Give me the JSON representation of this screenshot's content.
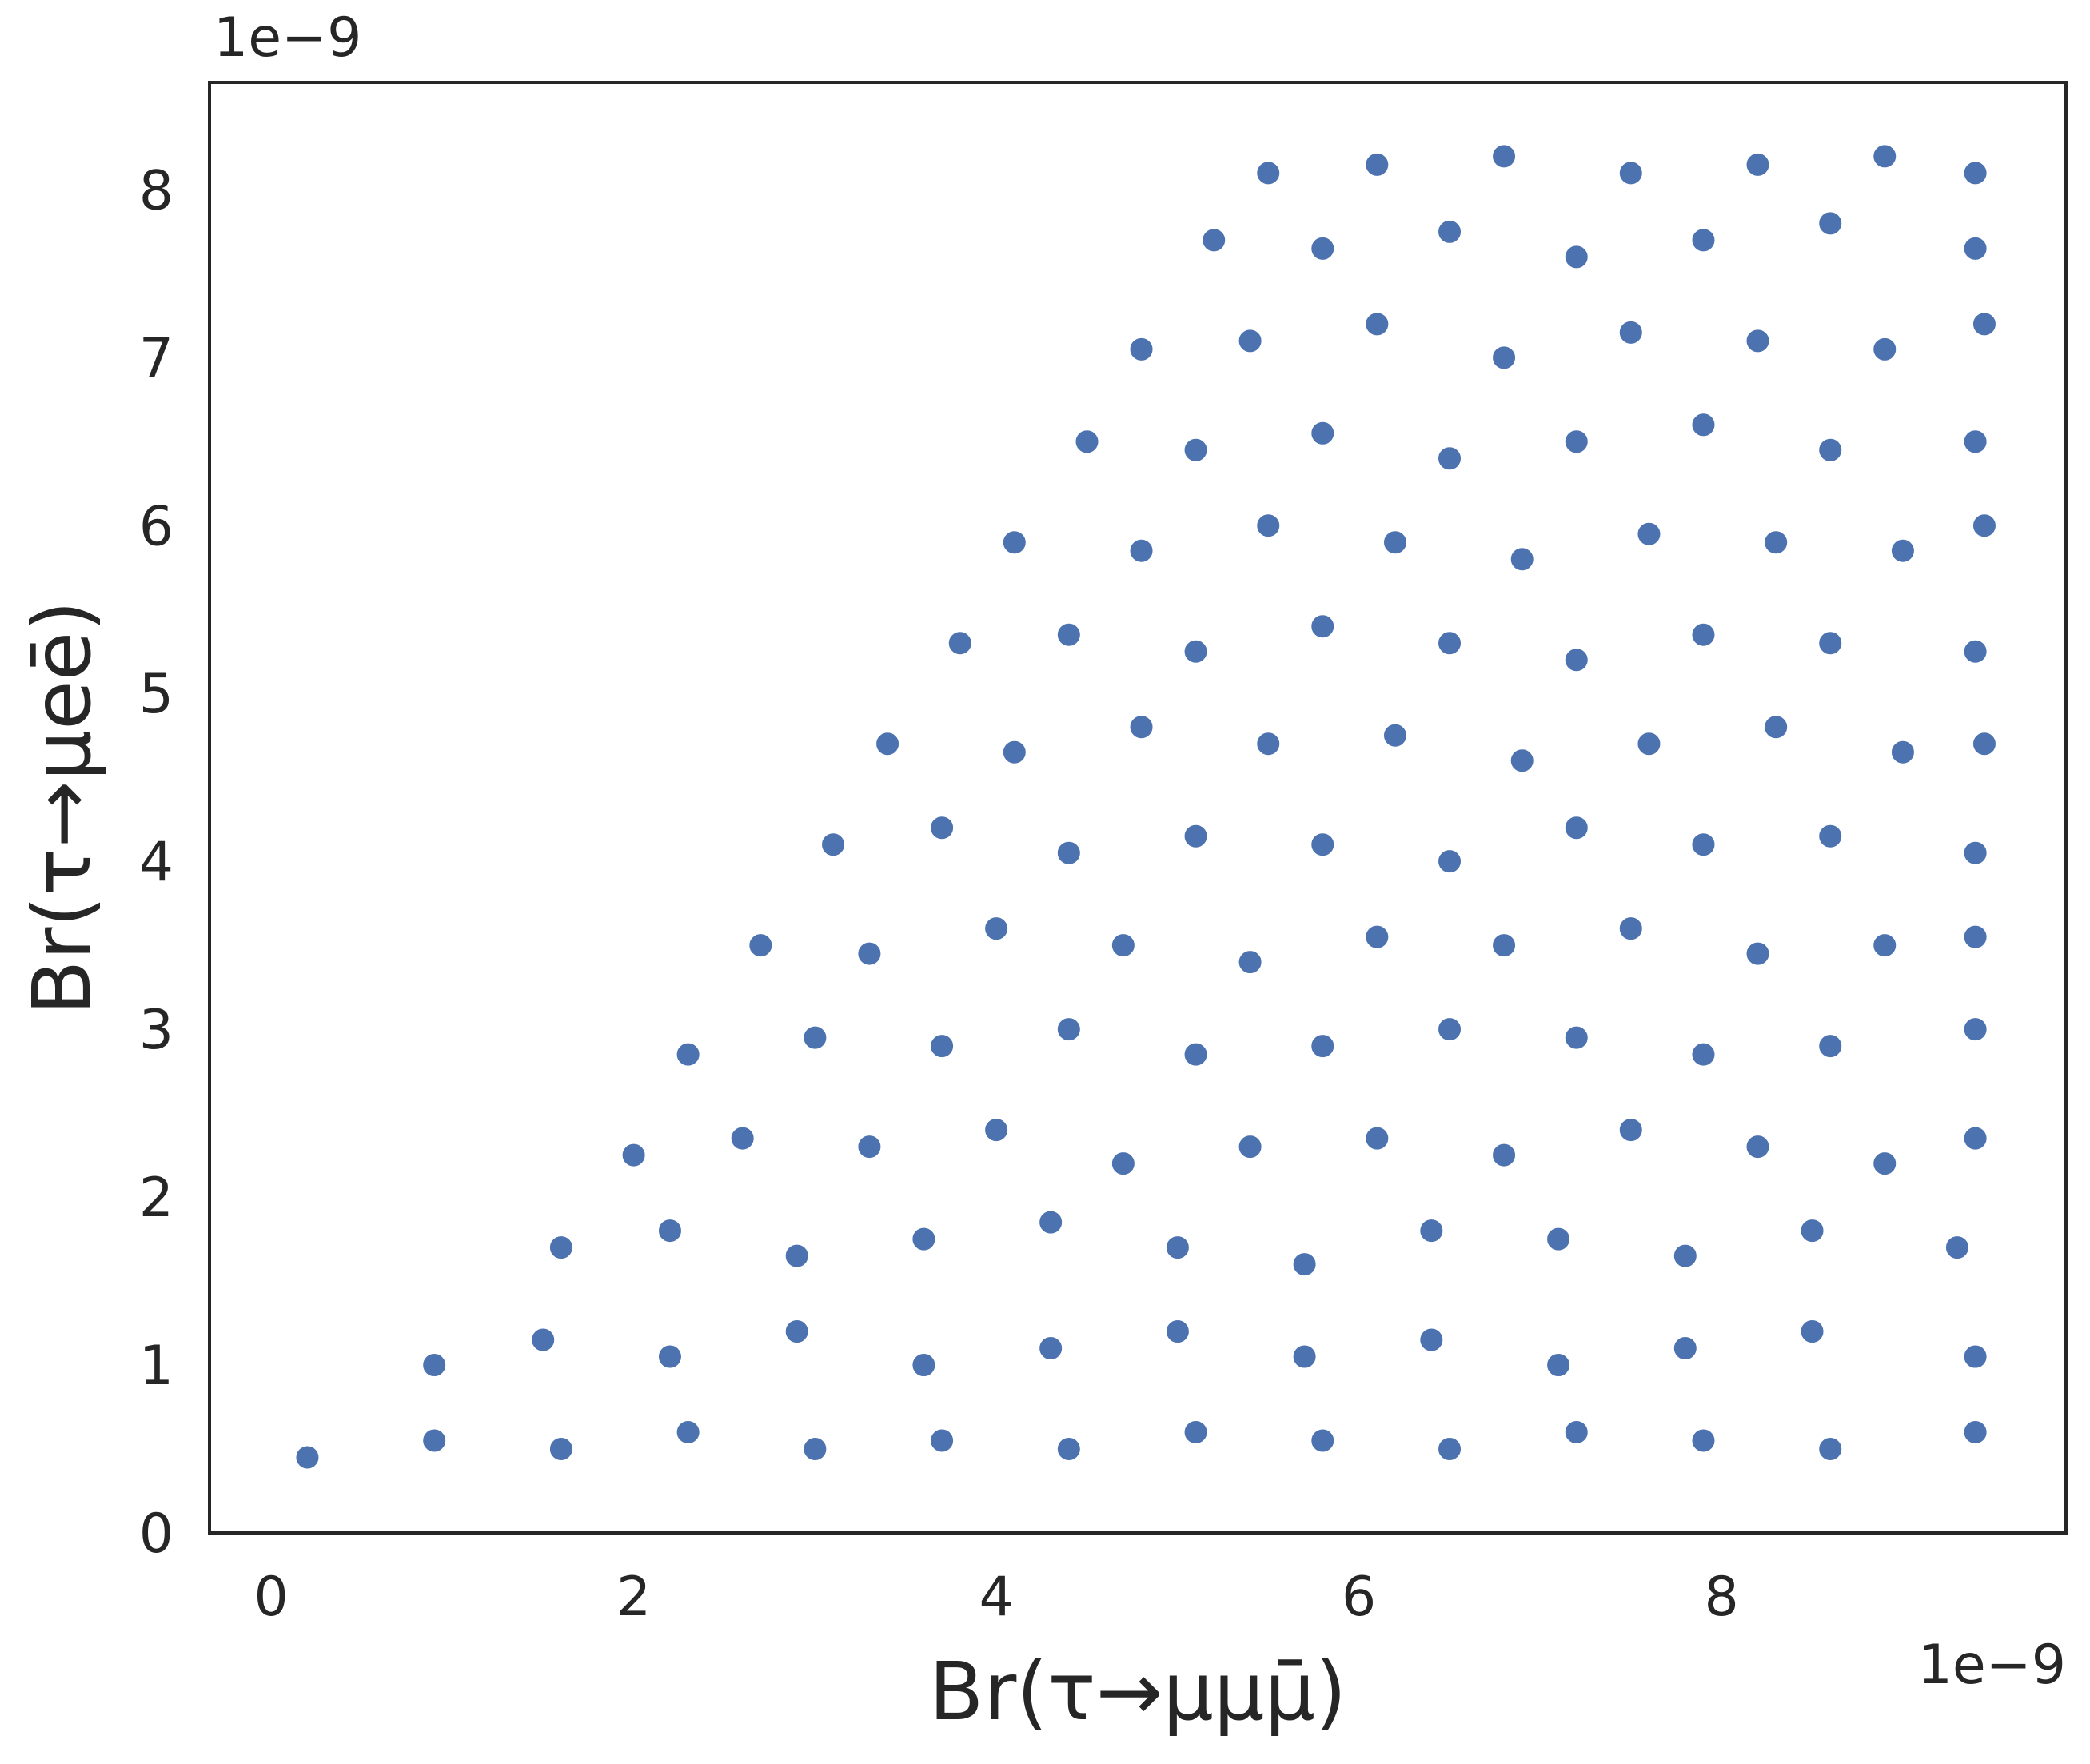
{
  "chart_data": {
    "type": "scatter",
    "xlabel": "Br(τ→μμμ̄)",
    "ylabel": "Br(τ→μeē)",
    "x_offset_label": "1e−9",
    "y_offset_label": "1e−9",
    "xlim": [
      -0.34,
      9.9
    ],
    "ylim": [
      0,
      8.64
    ],
    "xticks": [
      0,
      2,
      4,
      6,
      8
    ],
    "yticks": [
      0,
      1,
      2,
      3,
      4,
      5,
      6,
      7,
      8
    ],
    "grid": false,
    "series": [
      {
        "color": "#4c72b0",
        "x": [
          0.2,
          0.9,
          1.6,
          2.3,
          3.0,
          3.7,
          4.4,
          5.1,
          5.8,
          6.5,
          7.2,
          7.9,
          8.6,
          9.4,
          0.9,
          1.5,
          2.2,
          2.9,
          3.6,
          4.3,
          5.0,
          5.7,
          6.4,
          7.1,
          7.8,
          8.5,
          9.4,
          1.6,
          2.2,
          2.9,
          3.6,
          4.3,
          5.0,
          5.7,
          6.4,
          7.1,
          7.8,
          8.5,
          9.3,
          2.0,
          2.6,
          3.3,
          4.0,
          4.7,
          5.4,
          6.1,
          6.8,
          7.5,
          8.2,
          8.9,
          9.4,
          2.3,
          3.0,
          3.7,
          4.4,
          5.1,
          5.8,
          6.5,
          7.2,
          7.9,
          8.6,
          9.4,
          2.7,
          3.3,
          4.0,
          4.7,
          5.4,
          6.1,
          6.8,
          7.5,
          8.2,
          8.9,
          9.4,
          3.1,
          3.7,
          4.4,
          5.1,
          5.8,
          6.5,
          7.2,
          7.9,
          8.6,
          9.4,
          3.4,
          4.1,
          4.8,
          5.5,
          6.2,
          6.9,
          7.6,
          8.3,
          9.0,
          9.45,
          3.8,
          4.4,
          5.1,
          5.8,
          6.5,
          7.2,
          7.9,
          8.6,
          9.4,
          4.1,
          4.8,
          5.5,
          6.2,
          6.9,
          7.6,
          8.3,
          9.0,
          9.45,
          4.5,
          5.1,
          5.8,
          6.5,
          7.2,
          7.9,
          8.6,
          9.4,
          4.8,
          5.4,
          6.1,
          6.8,
          7.5,
          8.2,
          8.9,
          9.45,
          5.2,
          5.8,
          6.5,
          7.2,
          7.9,
          8.6,
          9.4,
          5.5,
          6.1,
          6.8,
          7.5,
          8.2,
          8.9,
          9.4
        ],
        "y": [
          0.45,
          0.55,
          0.5,
          0.6,
          0.5,
          0.55,
          0.5,
          0.6,
          0.55,
          0.5,
          0.6,
          0.55,
          0.5,
          0.6,
          1.0,
          1.15,
          1.05,
          1.2,
          1.0,
          1.1,
          1.2,
          1.05,
          1.15,
          1.0,
          1.1,
          1.2,
          1.05,
          1.7,
          1.8,
          1.65,
          1.75,
          1.85,
          1.7,
          1.6,
          1.8,
          1.75,
          1.65,
          1.8,
          1.7,
          2.25,
          2.35,
          2.3,
          2.4,
          2.2,
          2.3,
          2.35,
          2.25,
          2.4,
          2.3,
          2.2,
          2.35,
          2.85,
          2.95,
          2.9,
          3.0,
          2.85,
          2.9,
          3.0,
          2.95,
          2.85,
          2.9,
          3.0,
          3.5,
          3.45,
          3.6,
          3.5,
          3.4,
          3.55,
          3.5,
          3.6,
          3.45,
          3.5,
          3.55,
          4.1,
          4.2,
          4.05,
          4.15,
          4.1,
          4.0,
          4.2,
          4.1,
          4.15,
          4.05,
          4.7,
          4.65,
          4.8,
          4.7,
          4.75,
          4.6,
          4.7,
          4.8,
          4.65,
          4.7,
          5.3,
          5.35,
          5.25,
          5.4,
          5.3,
          5.2,
          5.35,
          5.3,
          5.25,
          5.9,
          5.85,
          6.0,
          5.9,
          5.8,
          5.95,
          5.9,
          5.85,
          6.0,
          6.5,
          6.45,
          6.55,
          6.4,
          6.5,
          6.6,
          6.45,
          6.5,
          7.05,
          7.1,
          7.2,
          7.0,
          7.15,
          7.1,
          7.05,
          7.2,
          7.7,
          7.65,
          7.75,
          7.6,
          7.7,
          7.8,
          7.65,
          8.1,
          8.15,
          8.2,
          8.1,
          8.15,
          8.2,
          8.1
        ]
      }
    ]
  }
}
